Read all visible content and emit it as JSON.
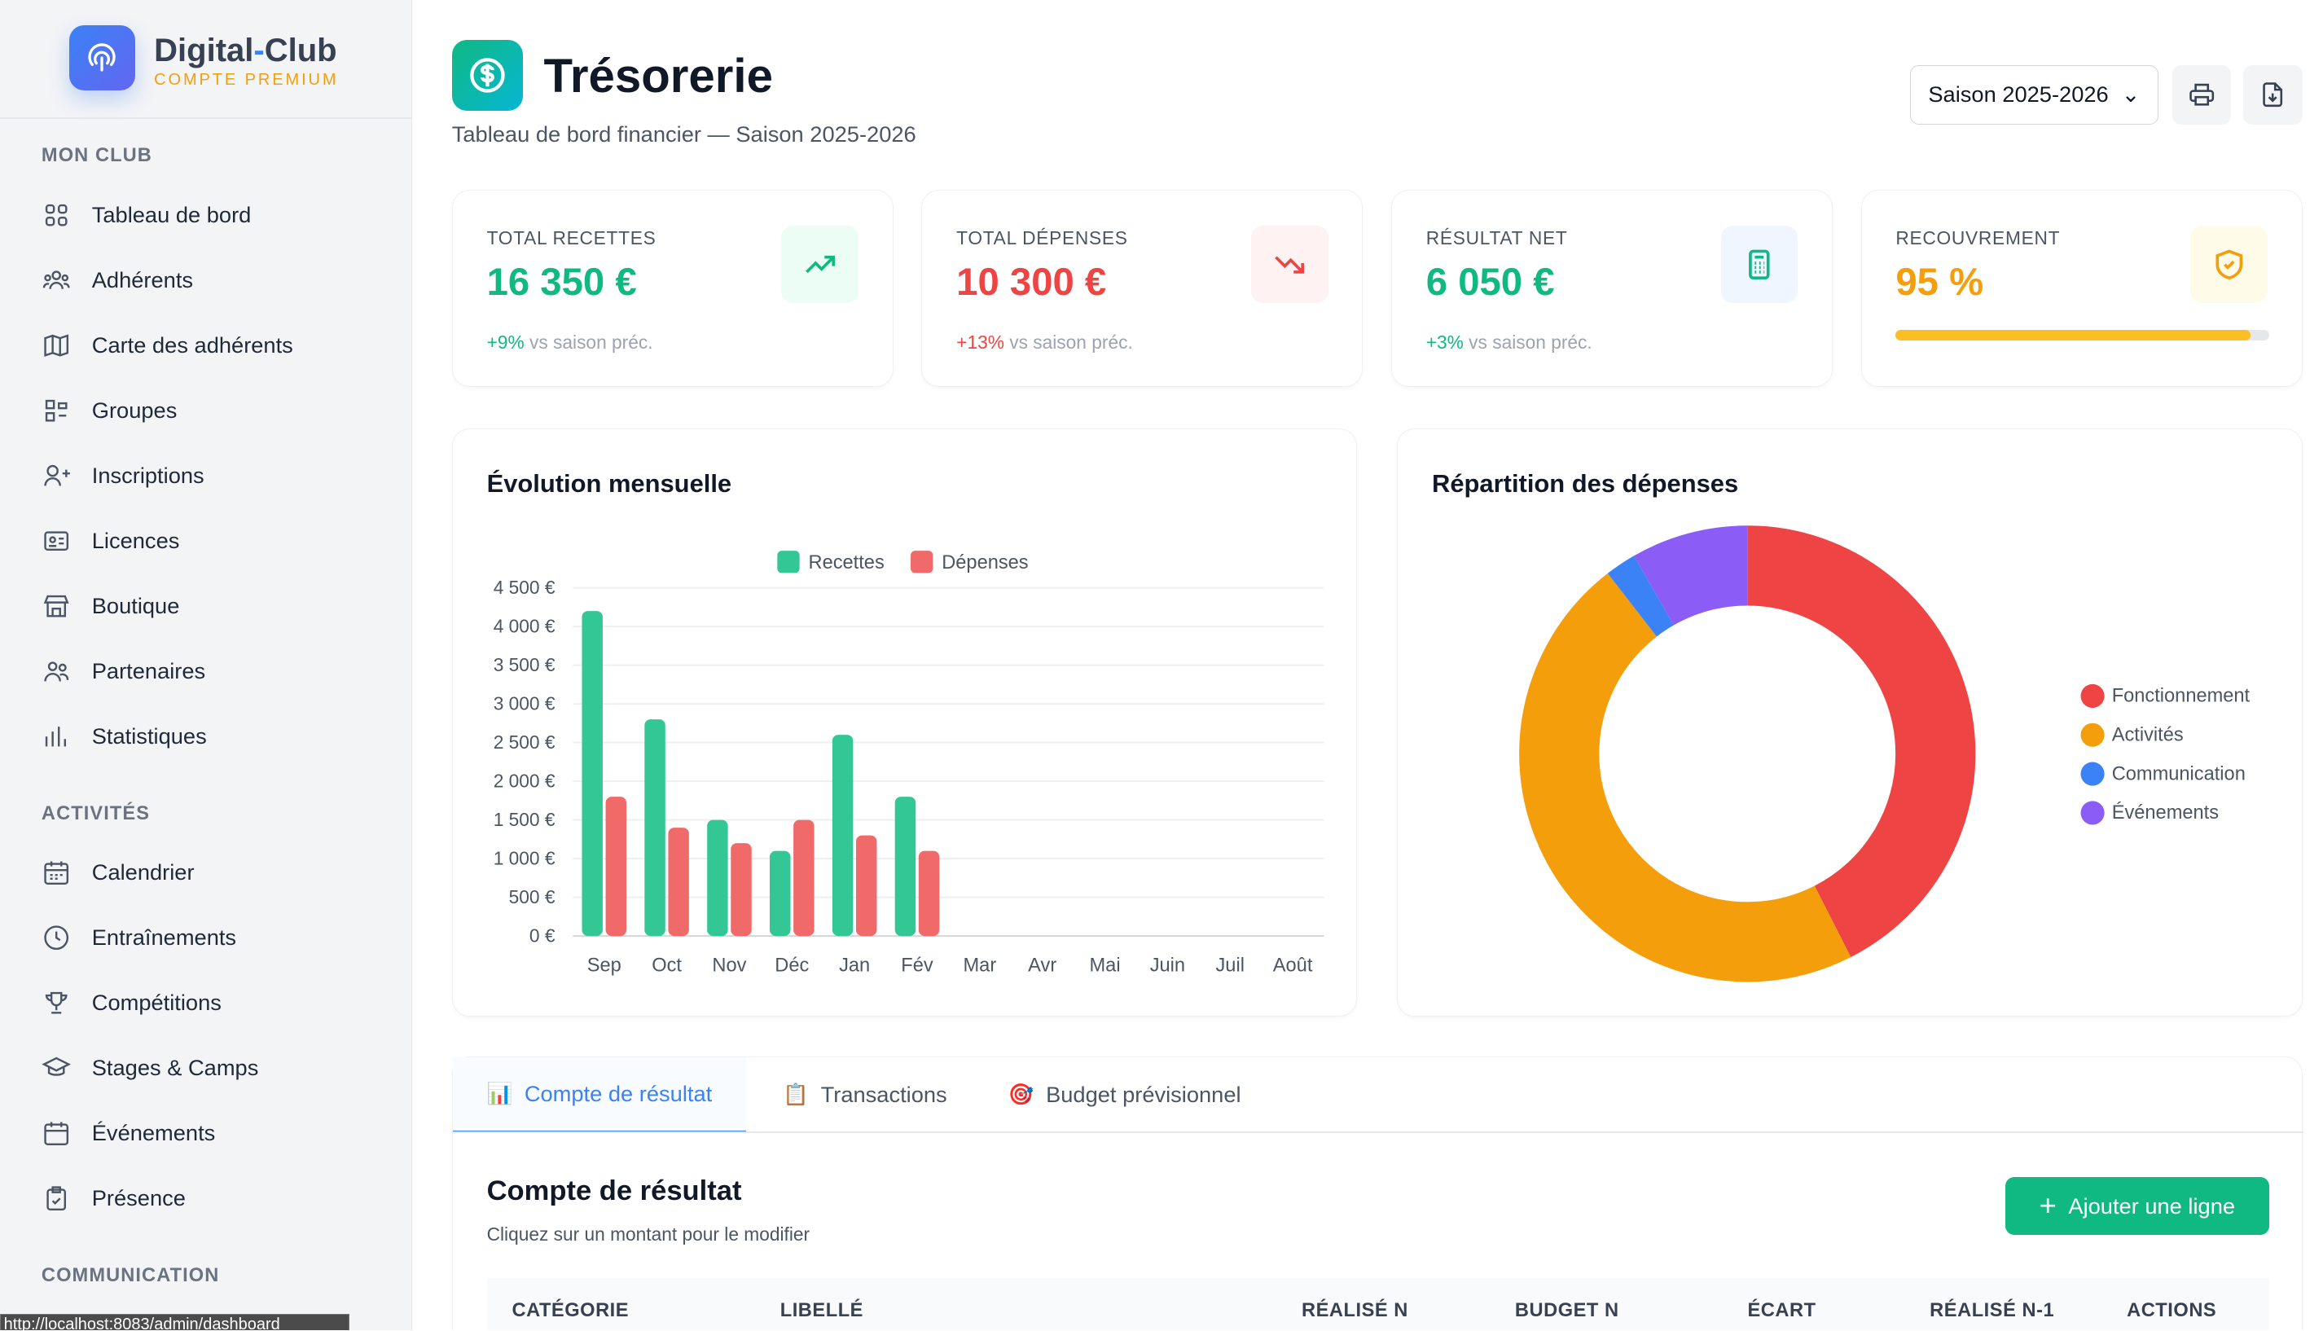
{
  "sidebar": {
    "brand_main": "Digital",
    "brand_dash": "-",
    "brand_end": "Club",
    "brand_sub": "COMPTE PREMIUM",
    "sections": [
      {
        "title": "MON CLUB",
        "items": [
          {
            "label": "Tableau de bord",
            "icon": "grid-icon"
          },
          {
            "label": "Adhérents",
            "icon": "users-icon"
          },
          {
            "label": "Carte des adhérents",
            "icon": "map-icon"
          },
          {
            "label": "Groupes",
            "icon": "groups-icon"
          },
          {
            "label": "Inscriptions",
            "icon": "user-plus-icon"
          },
          {
            "label": "Licences",
            "icon": "id-card-icon"
          },
          {
            "label": "Boutique",
            "icon": "store-icon"
          },
          {
            "label": "Partenaires",
            "icon": "partners-icon"
          },
          {
            "label": "Statistiques",
            "icon": "bar-chart-icon"
          }
        ]
      },
      {
        "title": "ACTIVITÉS",
        "items": [
          {
            "label": "Calendrier",
            "icon": "calendar-icon"
          },
          {
            "label": "Entraînements",
            "icon": "clock-icon"
          },
          {
            "label": "Compétitions",
            "icon": "trophy-icon"
          },
          {
            "label": "Stages & Camps",
            "icon": "graduation-cap-icon"
          },
          {
            "label": "Événements",
            "icon": "calendar-event-icon"
          },
          {
            "label": "Présence",
            "icon": "clipboard-check-icon"
          }
        ]
      },
      {
        "title": "COMMUNICATION",
        "items": []
      }
    ]
  },
  "status_url": "http://localhost:8083/admin/dashboard",
  "header": {
    "title": "Trésorerie",
    "subtitle": "Tableau de bord financier — Saison 2025-2026",
    "season": "Saison 2025-2026"
  },
  "kpis": [
    {
      "label": "TOTAL RECETTES",
      "value": "16 350 €",
      "delta": "+9%",
      "compare": " vs saison préc.",
      "color": "#10b981",
      "bg": "#ecfdf5",
      "icon": "trending-up-icon"
    },
    {
      "label": "TOTAL DÉPENSES",
      "value": "10 300 €",
      "delta": "+13%",
      "compare": " vs saison préc.",
      "color": "#ef4444",
      "bg": "#fef2f2",
      "icon": "trending-down-icon"
    },
    {
      "label": "RÉSULTAT NET",
      "value": "6 050 €",
      "delta": "+3%",
      "compare": " vs saison préc.",
      "color": "#10b981",
      "bg": "#eff6ff",
      "icon": "calculator-icon"
    },
    {
      "label": "RECOUVREMENT",
      "value": "95 %",
      "progress_pct": 95,
      "color": "#f59e0b",
      "bg": "#fefce8",
      "icon": "shield-check-icon"
    }
  ],
  "chart_data": [
    {
      "type": "bar",
      "title": "Évolution mensuelle",
      "categories": [
        "Sep",
        "Oct",
        "Nov",
        "Déc",
        "Jan",
        "Fév",
        "Mar",
        "Avr",
        "Mai",
        "Juin",
        "Juil",
        "Août"
      ],
      "series": [
        {
          "name": "Recettes",
          "color": "#34c796",
          "values": [
            4200,
            2800,
            1500,
            1100,
            2600,
            1800,
            0,
            0,
            0,
            0,
            0,
            0
          ]
        },
        {
          "name": "Dépenses",
          "color": "#f06a6a",
          "values": [
            1800,
            1400,
            1200,
            1500,
            1300,
            1100,
            0,
            0,
            0,
            0,
            0,
            0
          ]
        }
      ],
      "yticks": [
        "0 €",
        "500 €",
        "1 000 €",
        "1 500 €",
        "2 000 €",
        "2 500 €",
        "3 000 €",
        "3 500 €",
        "4 000 €",
        "4 500 €"
      ],
      "ylim": [
        0,
        4500
      ],
      "grid": true,
      "legend": "top"
    },
    {
      "type": "pie",
      "title": "Répartition des dépenses",
      "donut": true,
      "legend": "right",
      "slices": [
        {
          "name": "Fonctionnement",
          "share_pct": 42.5,
          "color": "#ef4444"
        },
        {
          "name": "Activités",
          "share_pct": 47,
          "color": "#f59e0b"
        },
        {
          "name": "Communication",
          "share_pct": 2.2,
          "color": "#3b82f6"
        },
        {
          "name": "Événements",
          "share_pct": 8.3,
          "color": "#8b5cf6"
        }
      ]
    }
  ],
  "tabs": [
    {
      "label": "Compte de résultat",
      "emoji": "📊"
    },
    {
      "label": "Transactions",
      "emoji": "📋"
    },
    {
      "label": "Budget prévisionnel",
      "emoji": "🎯"
    }
  ],
  "section": {
    "title": "Compte de résultat",
    "hint": "Cliquez sur un montant pour le modifier",
    "add_label": "Ajouter une ligne"
  },
  "table": {
    "columns": [
      "CATÉGORIE",
      "LIBELLÉ",
      "RÉALISÉ N",
      "BUDGET N",
      "ÉCART",
      "RÉALISÉ N-1",
      "ACTIONS"
    ]
  }
}
